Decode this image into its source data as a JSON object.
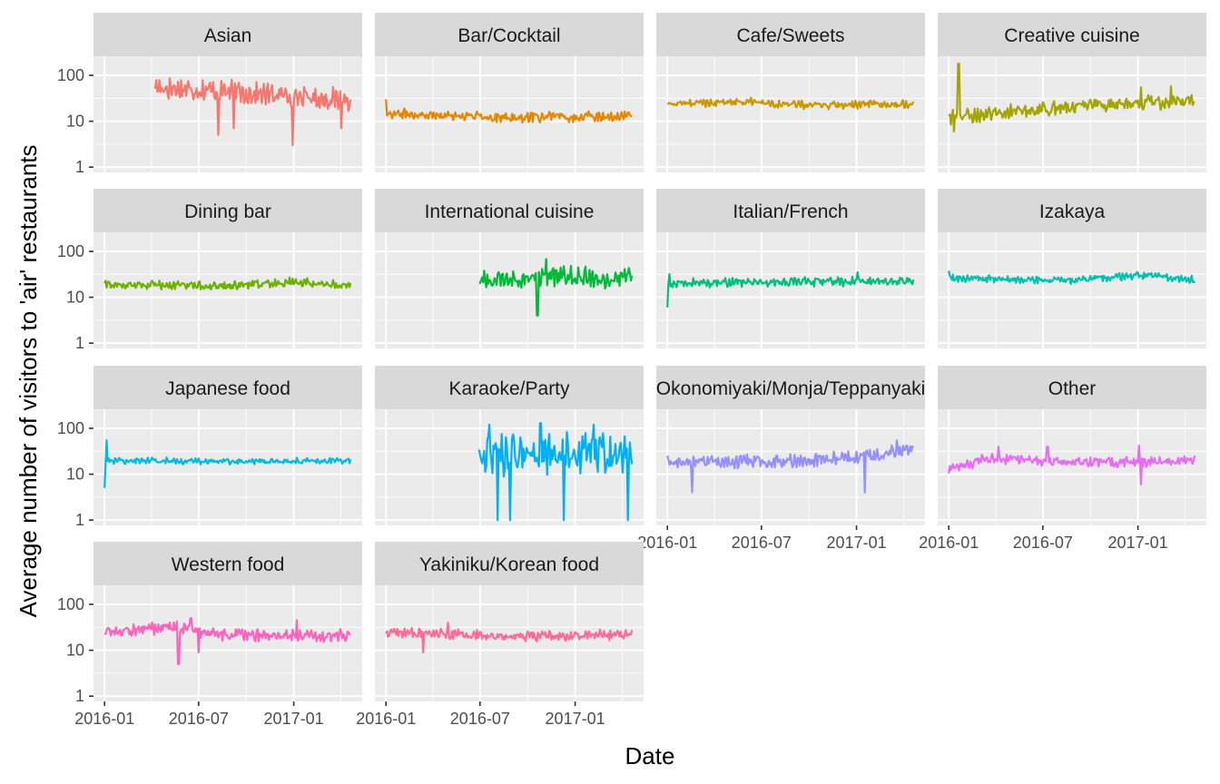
{
  "chart_data": {
    "type": "line",
    "facet": "wrap",
    "scale_y": "log10",
    "ylim": [
      1,
      200
    ],
    "xlim": [
      "2016-01-01",
      "2017-04-22"
    ],
    "xlabel": "Date",
    "ylabel": "Average number of visitors to 'air' restaurants",
    "y_ticks": [
      {
        "value": 1,
        "label": "1"
      },
      {
        "value": 10,
        "label": "10"
      },
      {
        "value": 100,
        "label": "100"
      }
    ],
    "x_ticks": [
      {
        "value": "2016-01-01",
        "label": "2016-01"
      },
      {
        "value": "2016-07-01",
        "label": "2016-07"
      },
      {
        "value": "2017-01-01",
        "label": "2017-01"
      }
    ],
    "grid": true,
    "legend": "none",
    "panels": [
      {
        "title": "Asian",
        "color": "#F8766D",
        "x_start": "2016-04-08",
        "x_end": "2017-04-22",
        "level": [
          [
            0,
            55
          ],
          [
            0.35,
            45
          ],
          [
            1,
            28
          ]
        ],
        "spread": 0.55,
        "dips": [
          [
            0.32,
            5
          ],
          [
            0.4,
            7
          ],
          [
            0.7,
            3
          ],
          [
            0.95,
            7
          ]
        ],
        "spikes": []
      },
      {
        "title": "Bar/Cocktail",
        "color": "#E58700",
        "x_start": "2016-01-01",
        "x_end": "2017-04-22",
        "level": [
          [
            0,
            15
          ],
          [
            0.5,
            12
          ],
          [
            1,
            13
          ]
        ],
        "spread": 0.25,
        "dips": [],
        "spikes": [
          [
            0.0,
            30
          ]
        ]
      },
      {
        "title": "Cafe/Sweets",
        "color": "#C99800",
        "x_start": "2016-01-01",
        "x_end": "2017-04-22",
        "level": [
          [
            0,
            24
          ],
          [
            0.3,
            27
          ],
          [
            0.6,
            22
          ],
          [
            1,
            24
          ]
        ],
        "spread": 0.2,
        "dips": [],
        "spikes": []
      },
      {
        "title": "Creative cuisine",
        "color": "#A3A500",
        "x_start": "2016-01-01",
        "x_end": "2017-04-22",
        "level": [
          [
            0,
            12
          ],
          [
            0.25,
            16
          ],
          [
            0.6,
            22
          ],
          [
            1,
            28
          ]
        ],
        "spread": 0.35,
        "dips": [
          [
            0.02,
            6
          ]
        ],
        "spikes": [
          [
            0.04,
            180
          ],
          [
            0.78,
            55
          ],
          [
            0.9,
            58
          ]
        ]
      },
      {
        "title": "Dining bar",
        "color": "#6BB100",
        "x_start": "2016-01-01",
        "x_end": "2017-04-22",
        "level": [
          [
            0,
            19
          ],
          [
            0.5,
            18
          ],
          [
            0.77,
            22
          ],
          [
            1,
            18
          ]
        ],
        "spread": 0.22,
        "dips": [],
        "spikes": []
      },
      {
        "title": "International cuisine",
        "color": "#00BA38",
        "x_start": "2016-06-29",
        "x_end": "2017-04-22",
        "level": [
          [
            0,
            22
          ],
          [
            0.5,
            28
          ],
          [
            1,
            25
          ]
        ],
        "spread": 0.5,
        "dips": [
          [
            0.38,
            4
          ]
        ],
        "spikes": [
          [
            0.44,
            68
          ]
        ]
      },
      {
        "title": "Italian/French",
        "color": "#00BF7D",
        "x_start": "2016-01-01",
        "x_end": "2017-04-22",
        "level": [
          [
            0,
            20
          ],
          [
            0.5,
            22
          ],
          [
            1,
            22
          ]
        ],
        "spread": 0.22,
        "dips": [
          [
            0.0,
            6
          ]
        ],
        "spikes": [
          [
            0.01,
            32
          ],
          [
            0.77,
            35
          ]
        ]
      },
      {
        "title": "Izakaya",
        "color": "#00C0AF",
        "x_start": "2016-01-01",
        "x_end": "2017-04-22",
        "level": [
          [
            0,
            26
          ],
          [
            0.5,
            23
          ],
          [
            0.78,
            30
          ],
          [
            1,
            24
          ]
        ],
        "spread": 0.18,
        "dips": [],
        "spikes": [
          [
            0.0,
            38
          ]
        ]
      },
      {
        "title": "Japanese food",
        "color": "#00BCD8",
        "x_start": "2016-01-01",
        "x_end": "2017-04-22",
        "level": [
          [
            0,
            20
          ],
          [
            0.5,
            19
          ],
          [
            1,
            20
          ]
        ],
        "spread": 0.16,
        "dips": [
          [
            0.0,
            5
          ]
        ],
        "spikes": [
          [
            0.01,
            55
          ]
        ]
      },
      {
        "title": "Karaoke/Party",
        "color": "#00B0F6",
        "x_start": "2016-06-29",
        "x_end": "2017-04-22",
        "level": [
          [
            0,
            25
          ],
          [
            0.5,
            30
          ],
          [
            1,
            25
          ]
        ],
        "spread": 1.05,
        "dips": [
          [
            0.12,
            1
          ],
          [
            0.2,
            1
          ],
          [
            0.55,
            1
          ],
          [
            0.97,
            1
          ]
        ],
        "spikes": [
          [
            0.07,
            120
          ],
          [
            0.4,
            130
          ],
          [
            0.75,
            120
          ]
        ]
      },
      {
        "title": "Okonomiyaki/Monja/Teppanyaki",
        "color": "#9590FF",
        "x_start": "2016-01-01",
        "x_end": "2017-04-22",
        "level": [
          [
            0,
            18
          ],
          [
            0.5,
            19
          ],
          [
            0.78,
            24
          ],
          [
            1,
            35
          ]
        ],
        "spread": 0.35,
        "dips": [
          [
            0.1,
            4
          ],
          [
            0.8,
            4
          ]
        ],
        "spikes": [
          [
            0.93,
            55
          ]
        ]
      },
      {
        "title": "Other",
        "color": "#E76BF3",
        "x_start": "2016-01-01",
        "x_end": "2017-04-22",
        "level": [
          [
            0,
            12
          ],
          [
            0.15,
            22
          ],
          [
            0.5,
            18
          ],
          [
            1,
            20
          ]
        ],
        "spread": 0.25,
        "dips": [
          [
            0.78,
            6
          ]
        ],
        "spikes": [
          [
            0.2,
            40
          ],
          [
            0.4,
            40
          ],
          [
            0.77,
            42
          ]
        ]
      },
      {
        "title": "Western food",
        "color": "#FF62BC",
        "x_start": "2016-01-01",
        "x_end": "2017-04-22",
        "level": [
          [
            0,
            25
          ],
          [
            0.3,
            32
          ],
          [
            0.45,
            22
          ],
          [
            1,
            21
          ]
        ],
        "spread": 0.3,
        "dips": [
          [
            0.3,
            5
          ],
          [
            0.38,
            9
          ]
        ],
        "spikes": [
          [
            0.35,
            50
          ],
          [
            0.78,
            45
          ]
        ]
      },
      {
        "title": "Yakiniku/Korean food",
        "color": "#FF6A98",
        "x_start": "2016-01-01",
        "x_end": "2017-04-22",
        "level": [
          [
            0,
            25
          ],
          [
            0.5,
            20
          ],
          [
            1,
            22
          ]
        ],
        "spread": 0.25,
        "dips": [
          [
            0.15,
            9
          ]
        ],
        "spikes": [
          [
            0.25,
            40
          ]
        ]
      }
    ]
  }
}
